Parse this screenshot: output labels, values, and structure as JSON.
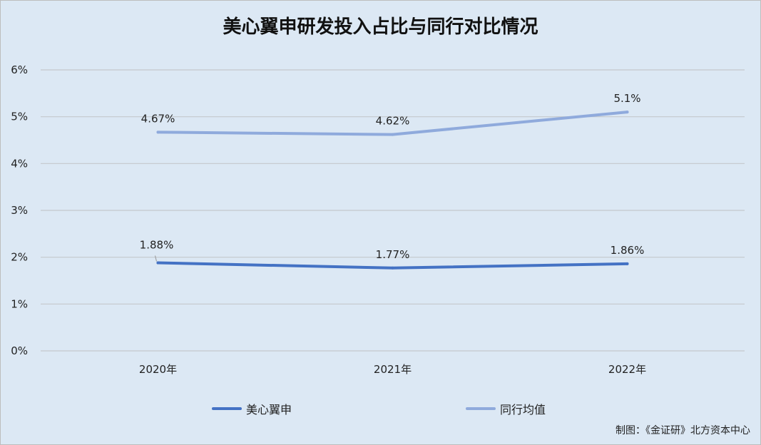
{
  "title": "美心翼申研发投入占比与同行对比情况",
  "source": "制图：《金证研》北方资本中心",
  "chart_data": {
    "type": "line",
    "title": "美心翼申研发投入占比与同行对比情况",
    "categories": [
      "2020年",
      "2021年",
      "2022年"
    ],
    "ylim": [
      0,
      6
    ],
    "yticks": [
      "0%",
      "1%",
      "2%",
      "3%",
      "4%",
      "5%",
      "6%"
    ],
    "grid": true,
    "legend_position": "bottom",
    "series": [
      {
        "name": "美心翼申",
        "color": "#4472c4",
        "values": [
          1.88,
          1.77,
          1.86
        ],
        "labels": [
          "1.88%",
          "1.77%",
          "1.86%"
        ]
      },
      {
        "name": "同行均值",
        "color": "#8faadc",
        "values": [
          4.67,
          4.62,
          5.1
        ],
        "labels": [
          "4.67%",
          "4.62%",
          "5.1%"
        ]
      }
    ]
  }
}
